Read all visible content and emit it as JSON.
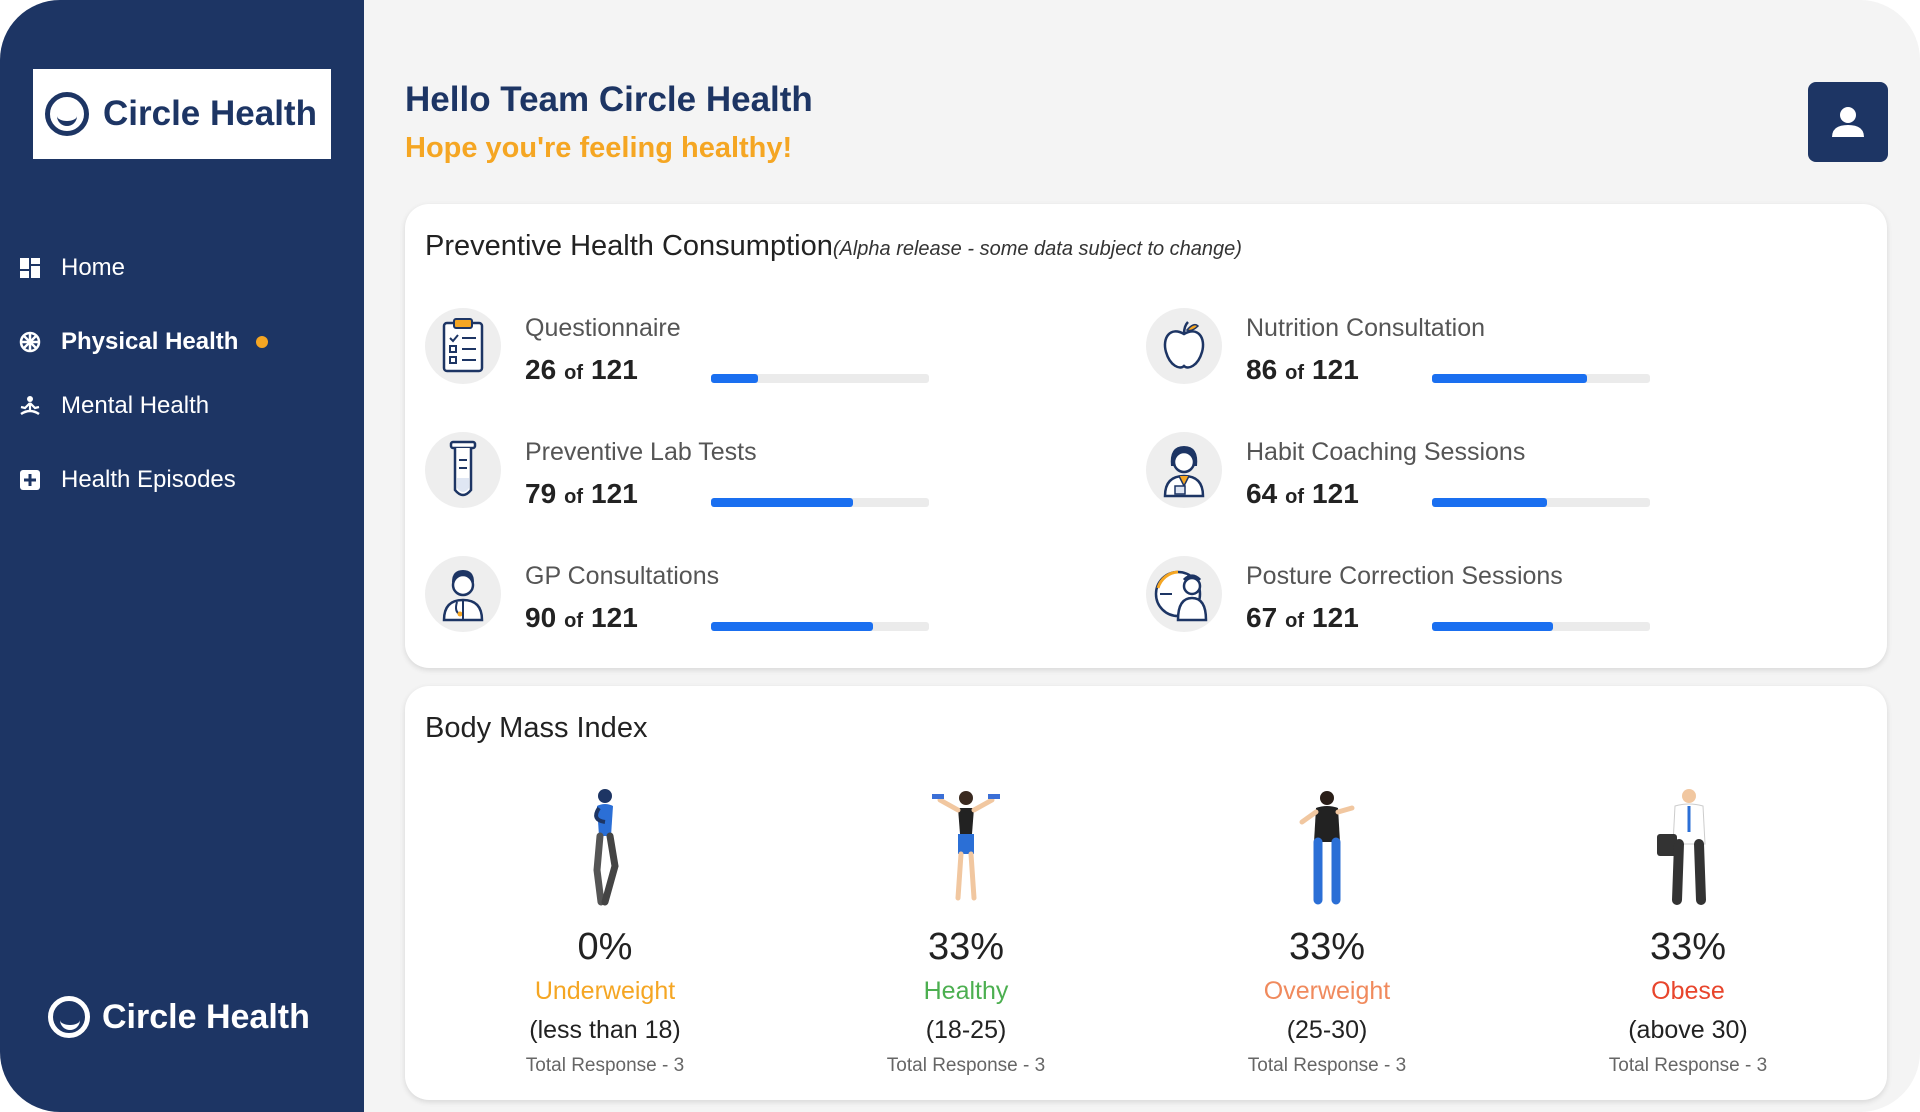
{
  "brand": {
    "name": "Circle Health"
  },
  "sidebar": {
    "items": [
      {
        "label": "Home",
        "icon": "dashboard-icon",
        "active": false
      },
      {
        "label": "Physical Health",
        "icon": "physical-health-icon",
        "active": true
      },
      {
        "label": "Mental Health",
        "icon": "meditation-icon",
        "active": false
      },
      {
        "label": "Health Episodes",
        "icon": "plus-square-icon",
        "active": false
      }
    ]
  },
  "header": {
    "greeting": "Hello Team Circle Health",
    "subgreeting": "Hope you're feeling healthy!"
  },
  "consumption": {
    "title": "Preventive Health Consumption",
    "note": "(Alpha release - some data subject to change)",
    "of_word": "of",
    "metrics": [
      {
        "label": "Questionnaire",
        "count": "26",
        "total": "121",
        "fraction": 0.215,
        "icon": "clipboard-icon"
      },
      {
        "label": "Nutrition Consultation",
        "count": "86",
        "total": "121",
        "fraction": 0.711,
        "icon": "apple-icon"
      },
      {
        "label": "Preventive Lab Tests",
        "count": "79",
        "total": "121",
        "fraction": 0.653,
        "icon": "test-tube-icon"
      },
      {
        "label": "Habit Coaching Sessions",
        "count": "64",
        "total": "121",
        "fraction": 0.529,
        "icon": "coach-icon"
      },
      {
        "label": "GP Consultations",
        "count": "90",
        "total": "121",
        "fraction": 0.744,
        "icon": "doctor-icon"
      },
      {
        "label": "Posture Correction Sessions",
        "count": "67",
        "total": "121",
        "fraction": 0.554,
        "icon": "posture-icon"
      }
    ]
  },
  "bmi": {
    "title": "Body Mass Index",
    "categories": [
      {
        "pct": "0%",
        "name": "Underweight",
        "range": "(less than 18)",
        "total": "Total Response - 3",
        "color": "#f5a623",
        "figure": "thin-person-icon"
      },
      {
        "pct": "33%",
        "name": "Healthy",
        "range": "(18-25)",
        "total": "Total Response - 3",
        "color": "#4caf50",
        "figure": "fit-person-icon"
      },
      {
        "pct": "33%",
        "name": "Overweight",
        "range": "(25-30)",
        "total": "Total Response - 3",
        "color": "#f08a5d",
        "figure": "overweight-person-icon"
      },
      {
        "pct": "33%",
        "name": "Obese",
        "range": "(above 30)",
        "total": "Total Response - 3",
        "color": "#e8452c",
        "figure": "obese-person-icon"
      }
    ]
  }
}
